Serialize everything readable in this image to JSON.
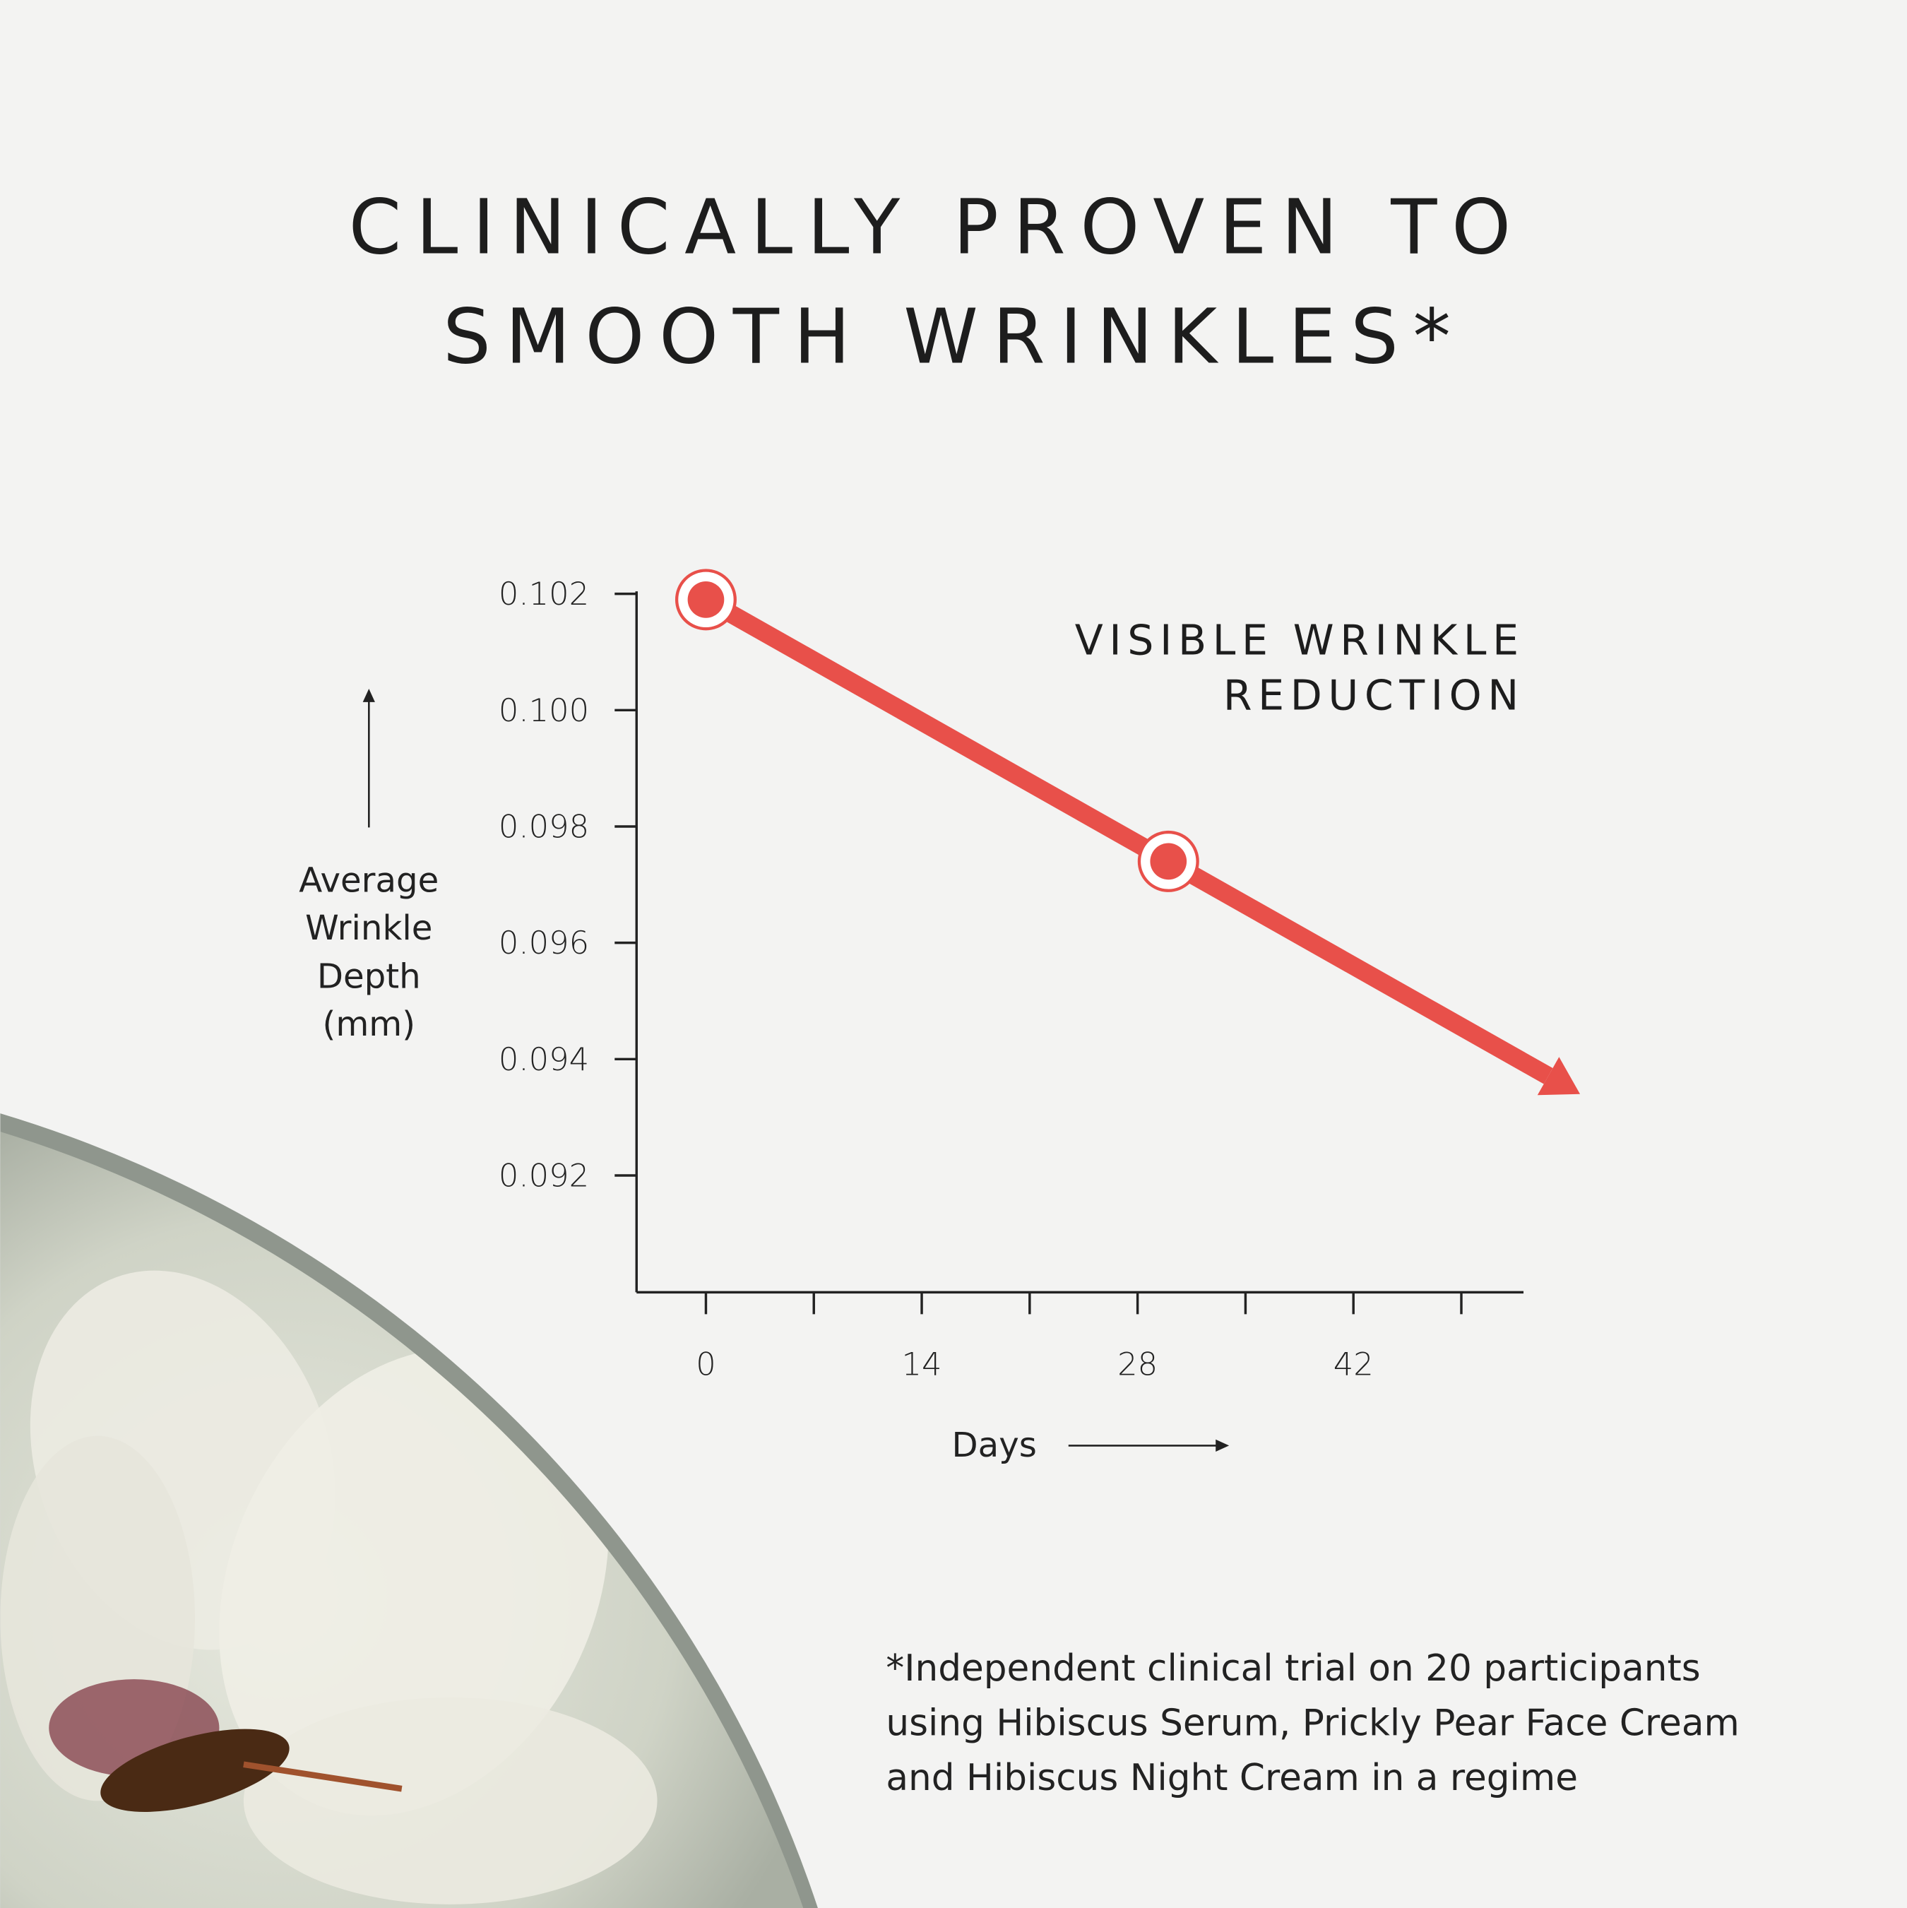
{
  "title_lines": [
    "CLINICALLY PROVEN TO",
    "SMOOTH WRINKLES*"
  ],
  "chart_data": {
    "type": "line",
    "ylabel_lines": [
      "Average",
      "Wrinkle",
      "Depth",
      "(mm)"
    ],
    "xlabel": "Days",
    "ylim": [
      0.09,
      0.102
    ],
    "xlim": [
      0,
      56
    ],
    "yticks": [
      "0.102",
      "0.100",
      "0.098",
      "0.096",
      "0.094",
      "0.092"
    ],
    "xticks": [
      "0",
      "14",
      "28",
      "42"
    ],
    "x_minor_ticks": [
      0,
      7,
      14,
      21,
      28,
      35,
      42,
      49
    ],
    "series": [
      {
        "x": [
          0,
          30
        ],
        "y": [
          0.1019,
          0.0974
        ]
      }
    ],
    "trend_arrow_end": {
      "x": 56.7,
      "y": 0.0934
    },
    "annotation_lines": [
      "VISIBLE WRINKLE",
      "REDUCTION"
    ],
    "line_color": "#e8504a",
    "grid": false
  },
  "footnote_lines": [
    "*Independent clinical trial on 20 participants",
    "using Hibiscus Serum, Prickly Pear Face Cream",
    "and Hibiscus Night Cream in a regime"
  ]
}
